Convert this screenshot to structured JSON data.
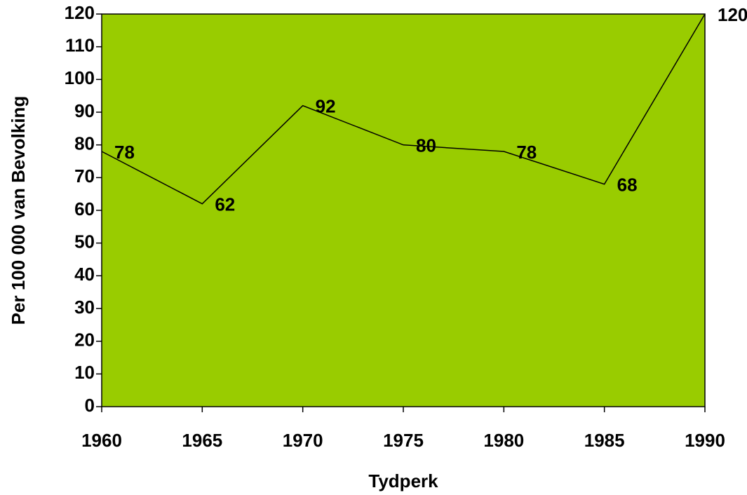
{
  "chart_data": {
    "type": "line",
    "x_label": "Tydperk",
    "y_label": "Per 100 000 van Bevolking",
    "x": [
      1960,
      1965,
      1970,
      1975,
      1980,
      1985,
      1990
    ],
    "series": [
      {
        "color": "#000000",
        "values": [
          78,
          62,
          92,
          80,
          78,
          68,
          120
        ]
      }
    ],
    "xlim": [
      1960,
      1990
    ],
    "xticks": [
      1960,
      1965,
      1970,
      1975,
      1980,
      1985,
      1990
    ],
    "ylim": [
      0,
      120
    ],
    "yticks": [
      0,
      10,
      20,
      30,
      40,
      50,
      60,
      70,
      80,
      90,
      100,
      110,
      120
    ],
    "plot_background": "#99cc00",
    "data_labels": true
  }
}
